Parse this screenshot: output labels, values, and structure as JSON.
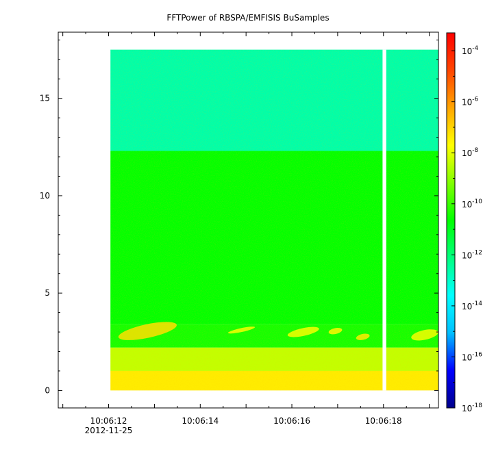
{
  "chart_data": {
    "type": "heatmap",
    "title": "FFTPower of RBSPA/EMFISIS  BuSamples",
    "x_axis": {
      "ticks": [
        "10:06:12",
        "10:06:14",
        "10:06:16",
        "10:06:18"
      ],
      "tick_values_sec": [
        12,
        14,
        16,
        18
      ],
      "range_sec": [
        10.9,
        19.2
      ],
      "date_label": "2012-11-25"
    },
    "y_axis": {
      "ticks": [
        "0",
        "5",
        "10",
        "15"
      ],
      "tick_values": [
        0,
        5,
        10,
        15
      ],
      "range": [
        -0.9,
        18.4
      ]
    },
    "colorbar": {
      "scale": "log",
      "range_exp": [
        -18,
        -3.3
      ],
      "ticks": [
        {
          "base": "10",
          "exp": "-4"
        },
        {
          "base": "10",
          "exp": "-6"
        },
        {
          "base": "10",
          "exp": "-8"
        },
        {
          "base": "10",
          "exp": "-10"
        },
        {
          "base": "10",
          "exp": "-12"
        },
        {
          "base": "10",
          "exp": "-14"
        },
        {
          "base": "10",
          "exp": "-16"
        },
        {
          "base": "10",
          "exp": "-18"
        }
      ],
      "tick_values_exp": [
        -4,
        -6,
        -8,
        -10,
        -12,
        -14,
        -16,
        -18
      ],
      "colors": [
        "#00008b",
        "#0000ff",
        "#00bfff",
        "#00ffff",
        "#00ff80",
        "#00ff00",
        "#80ff00",
        "#ffff00",
        "#ffa500",
        "#ff4500",
        "#ff0000"
      ]
    },
    "data_extent": {
      "x_sec": [
        12.04,
        19.2
      ],
      "y": [
        0.0,
        17.5
      ]
    },
    "gap": {
      "x_sec": [
        17.98,
        18.06
      ]
    },
    "bands": [
      {
        "y": [
          12.3,
          17.5
        ],
        "log_power": -12.6
      },
      {
        "y": [
          3.4,
          12.3
        ],
        "log_power": -10.6
      },
      {
        "y": [
          2.2,
          3.4
        ],
        "log_power": -10.4
      },
      {
        "y": [
          1.0,
          2.2
        ],
        "log_power": -8.4
      },
      {
        "y": [
          0.0,
          1.0
        ],
        "log_power": -7.4
      }
    ],
    "features": [
      {
        "x_sec": [
          12.2,
          13.5
        ],
        "y": [
          2.7,
          3.4
        ],
        "log_power": -7.2
      },
      {
        "x_sec": [
          14.6,
          15.2
        ],
        "y": [
          3.0,
          3.2
        ],
        "log_power": -7.8
      },
      {
        "x_sec": [
          15.9,
          16.6
        ],
        "y": [
          2.8,
          3.2
        ],
        "log_power": -7.8
      },
      {
        "x_sec": [
          16.8,
          17.1
        ],
        "y": [
          2.9,
          3.2
        ],
        "log_power": -7.6
      },
      {
        "x_sec": [
          17.4,
          17.7
        ],
        "y": [
          2.6,
          2.9
        ],
        "log_power": -7.4
      },
      {
        "x_sec": [
          18.6,
          19.2
        ],
        "y": [
          2.6,
          3.1
        ],
        "log_power": -7.8
      }
    ]
  }
}
